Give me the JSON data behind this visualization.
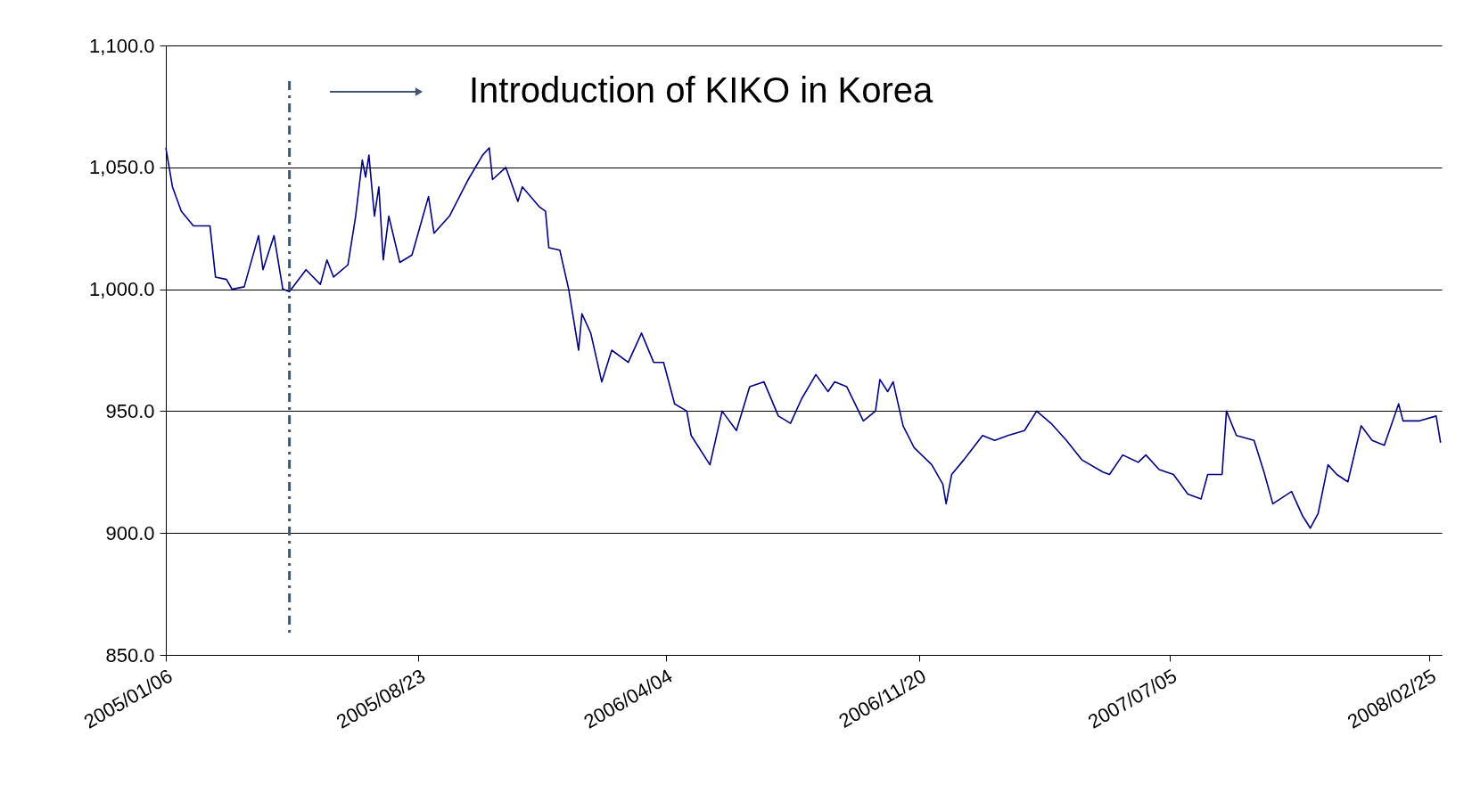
{
  "chart_data": {
    "type": "line",
    "annotations": [
      "Introduction of KIKO in Korea"
    ],
    "x": [
      "2005-01-06",
      "2005-01-12",
      "2005-01-20",
      "2005-01-31",
      "2005-02-15",
      "2005-02-20",
      "2005-03-02",
      "2005-03-07",
      "2005-03-18",
      "2005-03-31",
      "2005-04-04",
      "2005-04-14",
      "2005-04-22",
      "2005-04-28",
      "2005-05-13",
      "2005-05-26",
      "2005-06-01",
      "2005-06-07",
      "2005-06-20",
      "2005-06-27",
      "2005-07-03",
      "2005-07-06",
      "2005-07-09",
      "2005-07-14",
      "2005-07-18",
      "2005-07-22",
      "2005-07-27",
      "2005-08-06",
      "2005-08-17",
      "2005-09-01",
      "2005-09-06",
      "2005-09-20",
      "2005-10-07",
      "2005-10-20",
      "2005-10-26",
      "2005-10-29",
      "2005-11-10",
      "2005-11-21",
      "2005-11-25",
      "2005-12-10",
      "2005-12-16",
      "2005-12-19",
      "2005-12-29",
      "2006-01-06",
      "2006-01-15",
      "2006-01-18",
      "2006-01-26",
      "2006-02-05",
      "2006-02-14",
      "2006-03-01",
      "2006-03-13",
      "2006-03-24",
      "2006-04-02",
      "2006-04-12",
      "2006-04-23",
      "2006-04-27",
      "2006-05-14",
      "2006-05-25",
      "2006-06-07",
      "2006-06-19",
      "2006-07-02",
      "2006-07-15",
      "2006-07-26",
      "2006-08-05",
      "2006-08-18",
      "2006-08-29",
      "2006-09-04",
      "2006-09-15",
      "2006-09-30",
      "2006-10-11",
      "2006-10-15",
      "2006-10-22",
      "2006-10-27",
      "2006-11-05",
      "2006-11-15",
      "2006-12-01",
      "2006-12-11",
      "2006-12-14",
      "2006-12-19",
      "2006-12-30",
      "2007-01-16",
      "2007-01-27",
      "2007-02-08",
      "2007-02-23",
      "2007-03-06",
      "2007-03-19",
      "2007-04-02",
      "2007-04-16",
      "2007-05-05",
      "2007-05-11",
      "2007-05-23",
      "2007-06-06",
      "2007-06-13",
      "2007-06-25",
      "2007-07-08",
      "2007-07-21",
      "2007-08-02",
      "2007-08-08",
      "2007-08-21",
      "2007-08-25",
      "2007-09-03",
      "2007-09-19",
      "2007-09-28",
      "2007-10-06",
      "2007-10-23",
      "2007-11-02",
      "2007-11-09",
      "2007-11-16",
      "2007-11-25",
      "2007-12-03",
      "2007-12-13",
      "2007-12-25",
      "2008-01-04",
      "2008-01-15",
      "2008-01-28",
      "2008-02-01",
      "2008-02-16",
      "2008-03-02",
      "2008-03-06"
    ],
    "series": [
      {
        "color": "#000080",
        "values": [
          1058,
          1042,
          1032,
          1026,
          1026,
          1005,
          1004,
          1000,
          1001,
          1022,
          1008,
          1022,
          1000,
          999,
          1008,
          1002,
          1012,
          1005,
          1010,
          1030,
          1053,
          1046,
          1055,
          1030,
          1042,
          1012,
          1030,
          1011,
          1014,
          1038,
          1023,
          1030,
          1045,
          1055,
          1058,
          1045,
          1050,
          1036,
          1042,
          1034,
          1032,
          1017,
          1016,
          1000,
          975,
          990,
          982,
          962,
          975,
          970,
          982,
          970,
          970,
          953,
          950,
          940,
          928,
          950,
          942,
          960,
          962,
          948,
          945,
          955,
          965,
          958,
          962,
          960,
          946,
          950,
          963,
          958,
          962,
          944,
          935,
          928,
          920,
          912,
          924,
          930,
          940,
          938,
          940,
          942,
          950,
          945,
          938,
          930,
          925,
          924,
          932,
          929,
          932,
          926,
          924,
          916,
          914,
          924,
          924,
          950,
          940,
          938,
          925,
          912,
          917,
          907,
          902,
          908,
          928,
          924,
          921,
          944,
          938,
          936,
          953,
          946,
          946,
          948,
          937
        ]
      }
    ],
    "xlim": [
      "2005-01-06",
      "2008-03-07"
    ],
    "xticks": [
      {
        "value": "2005-01-06",
        "label": "2005/01/06"
      },
      {
        "value": "2005-08-23",
        "label": "2005/08/23"
      },
      {
        "value": "2006-04-04",
        "label": "2006/04/04"
      },
      {
        "value": "2006-11-20",
        "label": "2006/11/20"
      },
      {
        "value": "2007-07-05",
        "label": "2007/07/05"
      },
      {
        "value": "2008-02-25",
        "label": "2008/02/25"
      }
    ],
    "ylim": [
      850,
      1100
    ],
    "yticks": [
      {
        "value": 850,
        "label": "850.0"
      },
      {
        "value": 900,
        "label": "900.0"
      },
      {
        "value": 950,
        "label": "950.0"
      },
      {
        "value": 1000,
        "label": "1,000.0"
      },
      {
        "value": 1050,
        "label": "1,050.0"
      },
      {
        "value": 1100,
        "label": "1,100.0"
      }
    ],
    "ref_lines": [
      {
        "axis": "x",
        "value": "2005-04-28",
        "color": "#3f5670",
        "line_style": "dashdot"
      }
    ],
    "grid": "y",
    "marker": "none",
    "line_style": "solid"
  }
}
